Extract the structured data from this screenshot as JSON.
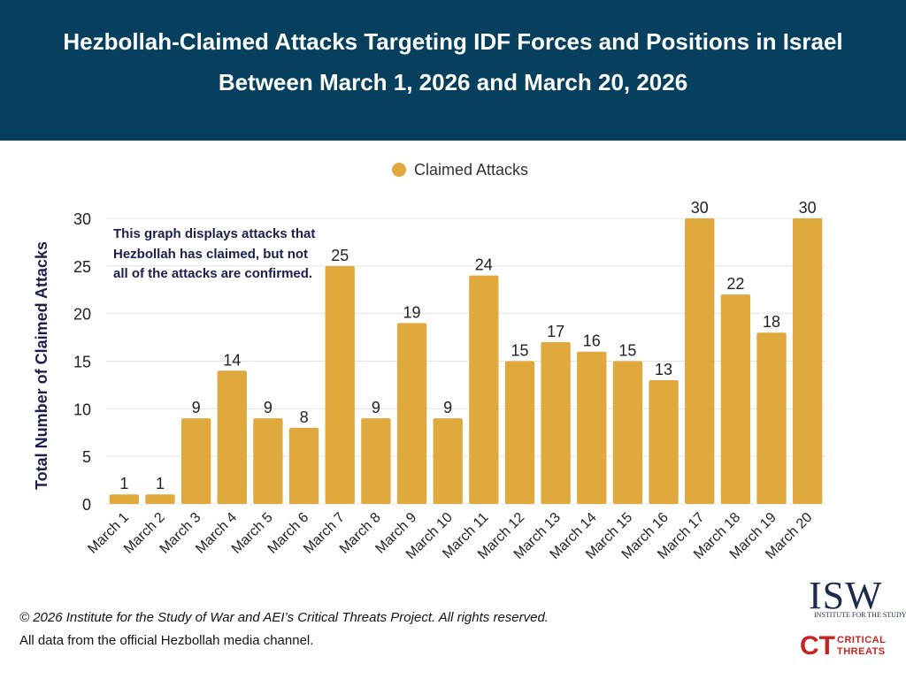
{
  "header": {
    "title_line1": "Hezbollah-Claimed Attacks Targeting IDF Forces and Positions in Israel",
    "title_line2": "Between March 1, 2026 and March 20, 2026"
  },
  "note": "This graph displays attacks that Hezbollah has claimed, but not all of the attacks are confirmed.",
  "footer": {
    "copyright": "© 2026 Institute for the Study of War and AEI’s Critical Threats Project. All rights reserved.",
    "source": "All data from the official Hezbollah media channel."
  },
  "logos": {
    "isw": "ISW",
    "isw_sub": "INSTITUTE FOR THE STUDY OF WAR",
    "ct": "CT",
    "ct_line1": "CRITICAL",
    "ct_line2": "THREATS"
  },
  "colors": {
    "header_bg": "#07405e",
    "bar": "#e0a93d",
    "note_text": "#1c1f4d",
    "ct_red": "#c9241f"
  },
  "chart_data": {
    "type": "bar",
    "title": "Hezbollah-Claimed Attacks Targeting IDF Forces and Positions in Israel Between March 1, 2026 and March 20, 2026",
    "xlabel": "",
    "ylabel": "Total Number of Claimed Attacks",
    "ylim": [
      0,
      30
    ],
    "yticks": [
      0,
      5,
      10,
      15,
      20,
      25,
      30
    ],
    "grid": true,
    "legend": "top-center",
    "categories": [
      "March 1",
      "March 2",
      "March 3",
      "March 4",
      "March 5",
      "March 6",
      "March 7",
      "March 8",
      "March 9",
      "March 10",
      "March 11",
      "March 12",
      "March 13",
      "March 14",
      "March 15",
      "March 16",
      "March 17",
      "March 18",
      "March 19",
      "March 20"
    ],
    "series": [
      {
        "name": "Claimed Attacks",
        "values": [
          1,
          1,
          9,
          14,
          9,
          8,
          25,
          9,
          19,
          9,
          24,
          15,
          17,
          16,
          15,
          13,
          30,
          22,
          18,
          30
        ]
      }
    ]
  }
}
